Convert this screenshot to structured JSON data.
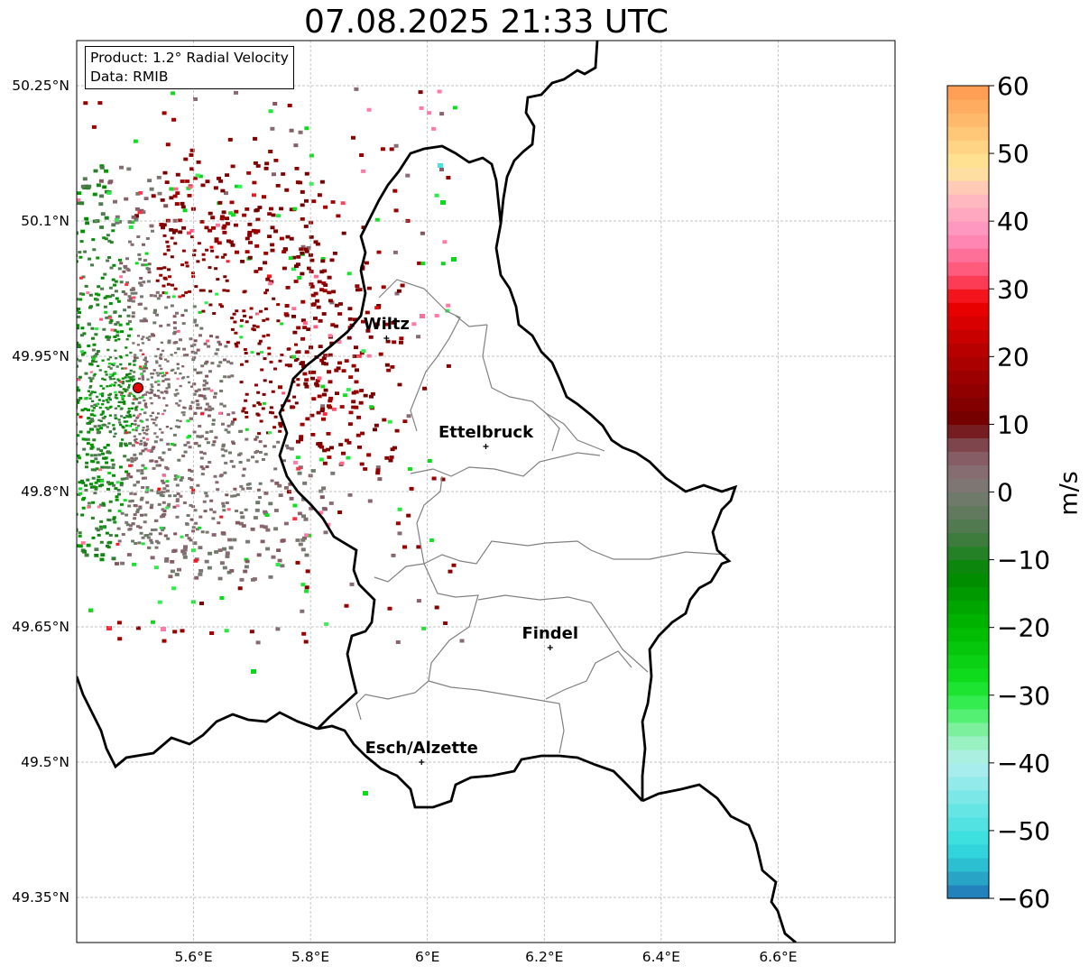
{
  "title": "07.08.2025 21:33 UTC",
  "info": {
    "product": "Product: 1.2° Radial Velocity",
    "source": "Data: RMIB"
  },
  "map": {
    "lon_range": [
      5.4,
      6.8
    ],
    "lat_range": [
      49.3,
      50.3
    ],
    "lon_ticks": [
      {
        "value": 5.6,
        "label": "5.6°E"
      },
      {
        "value": 5.8,
        "label": "5.8°E"
      },
      {
        "value": 6.0,
        "label": "6°E"
      },
      {
        "value": 6.2,
        "label": "6.2°E"
      },
      {
        "value": 6.4,
        "label": "6.4°E"
      },
      {
        "value": 6.6,
        "label": "6.6°E"
      }
    ],
    "lat_ticks": [
      {
        "value": 50.25,
        "label": "50.25°N"
      },
      {
        "value": 50.1,
        "label": "50.1°N"
      },
      {
        "value": 49.95,
        "label": "49.95°N"
      },
      {
        "value": 49.8,
        "label": "49.8°N"
      },
      {
        "value": 49.65,
        "label": "49.65°N"
      },
      {
        "value": 49.5,
        "label": "49.5°N"
      },
      {
        "value": 49.35,
        "label": "49.35°N"
      }
    ],
    "gridlines": true,
    "radar_site": {
      "lon": 5.505,
      "lat": 49.915,
      "color": "#e00000"
    },
    "cities": [
      {
        "name": "Wiltz",
        "lon": 5.93,
        "lat": 49.97
      },
      {
        "name": "Ettelbruck",
        "lon": 6.1,
        "lat": 49.85
      },
      {
        "name": "Findel",
        "lon": 6.21,
        "lat": 49.627
      },
      {
        "name": "Esch/Alzette",
        "lon": 5.99,
        "lat": 49.5
      }
    ]
  },
  "colorbar": {
    "label": "m/s",
    "range": [
      -60,
      60
    ],
    "ticks": [
      {
        "value": 60,
        "label": "60"
      },
      {
        "value": 50,
        "label": "50"
      },
      {
        "value": 40,
        "label": "40"
      },
      {
        "value": 30,
        "label": "30"
      },
      {
        "value": 20,
        "label": "20"
      },
      {
        "value": 10,
        "label": "10"
      },
      {
        "value": 0,
        "label": "0"
      },
      {
        "value": -10,
        "label": "−10"
      },
      {
        "value": -20,
        "label": "−20"
      },
      {
        "value": -30,
        "label": "−30"
      },
      {
        "value": -40,
        "label": "−40"
      },
      {
        "value": -50,
        "label": "−50"
      },
      {
        "value": -60,
        "label": "−60"
      }
    ],
    "stops": [
      {
        "v": -60,
        "c": "#2171b5"
      },
      {
        "v": -56,
        "c": "#29b5cc"
      },
      {
        "v": -52,
        "c": "#33dede"
      },
      {
        "v": -46,
        "c": "#70e6e6"
      },
      {
        "v": -40,
        "c": "#b3eeee"
      },
      {
        "v": -36,
        "c": "#90f0b0"
      },
      {
        "v": -32,
        "c": "#40f060"
      },
      {
        "v": -28,
        "c": "#10e020"
      },
      {
        "v": -20,
        "c": "#00b800"
      },
      {
        "v": -12,
        "c": "#008800"
      },
      {
        "v": -6,
        "c": "#4a7a4a"
      },
      {
        "v": 0,
        "c": "#787a72"
      },
      {
        "v": 4,
        "c": "#8a6870"
      },
      {
        "v": 8,
        "c": "#7a3a40"
      },
      {
        "v": 10,
        "c": "#700000"
      },
      {
        "v": 20,
        "c": "#b00000"
      },
      {
        "v": 28,
        "c": "#f00000"
      },
      {
        "v": 32,
        "c": "#ff5070"
      },
      {
        "v": 38,
        "c": "#ff90c0"
      },
      {
        "v": 44,
        "c": "#ffc0c0"
      },
      {
        "v": 48,
        "c": "#ffe898"
      },
      {
        "v": 54,
        "c": "#ffc070"
      },
      {
        "v": 60,
        "c": "#ff9850"
      }
    ]
  }
}
